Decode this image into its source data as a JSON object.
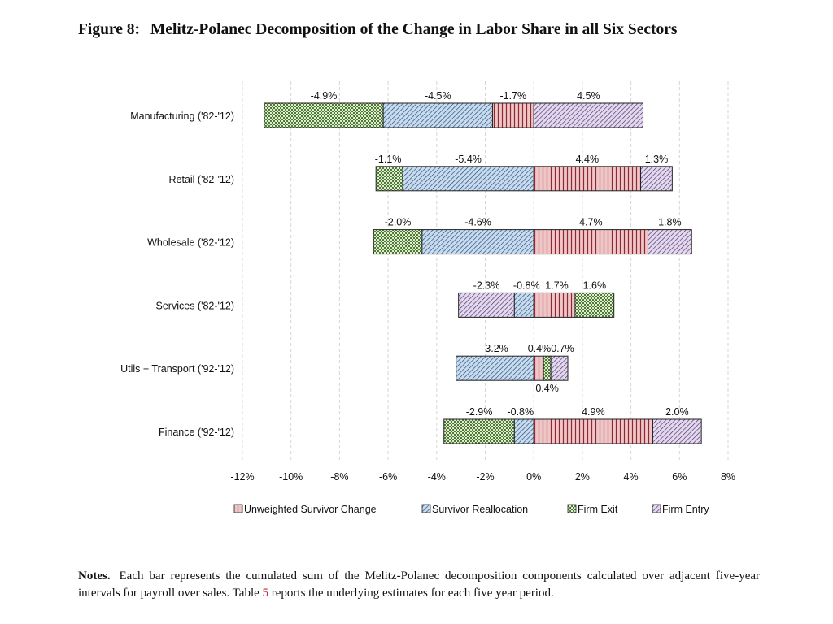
{
  "figure": {
    "label": "Figure 8:",
    "title": "Melitz-Polanec Decomposition of the Change in Labor Share in all Six Sectors"
  },
  "notes": {
    "lead": "Notes.",
    "text_before": "Each bar represents the cumulated sum of the Melitz-Polanec decomposition components calculated over adjacent five-year intervals for payroll over sales. Table",
    "ref": "5",
    "text_after": "reports the underlying estimates for each five year period."
  },
  "chart_data": {
    "type": "bar",
    "orientation": "horizontal",
    "stacked": true,
    "xlim": [
      -12,
      8
    ],
    "xticks": [
      -12,
      -10,
      -8,
      -6,
      -4,
      -2,
      0,
      2,
      4,
      6,
      8
    ],
    "xtick_labels": [
      "-12%",
      "-10%",
      "-8%",
      "-6%",
      "-4%",
      "-2%",
      "0%",
      "2%",
      "4%",
      "6%",
      "8%"
    ],
    "grid": "vertical dashed",
    "legend_position": "bottom",
    "categories": [
      "Manufacturing ('82-'12)",
      "Retail ('82-'12)",
      "Wholesale ('82-'12)",
      "Services ('82-'12)",
      "Utils + Transport ('92-'12)",
      "Finance ('92-'12)"
    ],
    "series": [
      {
        "name": "Unweighted Survivor Change",
        "color": "#e8b4b4",
        "pattern": "vertical-lines",
        "values": [
          -1.7,
          4.4,
          4.7,
          1.7,
          0.4,
          4.9
        ]
      },
      {
        "name": "Survivor Reallocation",
        "color": "#b8d0ea",
        "pattern": "diagonal-lines",
        "values": [
          -4.5,
          -5.4,
          -4.6,
          -0.8,
          -3.2,
          -0.8
        ]
      },
      {
        "name": "Firm Exit",
        "color": "#c4dcb0",
        "pattern": "checker",
        "values": [
          -4.9,
          -1.1,
          -2.0,
          1.6,
          0.4,
          -2.9
        ]
      },
      {
        "name": "Firm Entry",
        "color": "#d4c4e4",
        "pattern": "diagonal-lines",
        "values": [
          4.5,
          1.3,
          1.8,
          -2.3,
          0.7,
          2.0
        ]
      }
    ],
    "segments": [
      [
        {
          "series": 2,
          "from": -11.1,
          "to": -6.2
        },
        {
          "series": 1,
          "from": -6.2,
          "to": -1.7
        },
        {
          "series": 0,
          "from": -1.7,
          "to": 0
        },
        {
          "series": 3,
          "from": 0,
          "to": 4.5
        }
      ],
      [
        {
          "series": 2,
          "from": -6.5,
          "to": -5.4
        },
        {
          "series": 1,
          "from": -5.4,
          "to": 0
        },
        {
          "series": 0,
          "from": 0,
          "to": 4.4
        },
        {
          "series": 3,
          "from": 4.4,
          "to": 5.7
        }
      ],
      [
        {
          "series": 2,
          "from": -6.6,
          "to": -4.6
        },
        {
          "series": 1,
          "from": -4.6,
          "to": 0
        },
        {
          "series": 0,
          "from": 0,
          "to": 4.7
        },
        {
          "series": 3,
          "from": 4.7,
          "to": 6.5
        }
      ],
      [
        {
          "series": 3,
          "from": -3.1,
          "to": -0.8
        },
        {
          "series": 1,
          "from": -0.8,
          "to": 0
        },
        {
          "series": 0,
          "from": 0,
          "to": 1.7
        },
        {
          "series": 2,
          "from": 1.7,
          "to": 3.3
        }
      ],
      [
        {
          "series": 1,
          "from": -3.2,
          "to": 0
        },
        {
          "series": 0,
          "from": 0,
          "to": 0.4
        },
        {
          "series": 2,
          "from": 0.4,
          "to": 0.7
        },
        {
          "series": 3,
          "from": 0.7,
          "to": 1.4
        }
      ],
      [
        {
          "series": 2,
          "from": -3.7,
          "to": -0.8
        },
        {
          "series": 1,
          "from": -0.8,
          "to": 0
        },
        {
          "series": 0,
          "from": 0,
          "to": 4.9
        },
        {
          "series": 3,
          "from": 4.9,
          "to": 6.9
        }
      ]
    ],
    "data_labels": [
      [
        {
          "text": "-4.9%",
          "at": -8.65,
          "pos": "above"
        },
        {
          "text": "-4.5%",
          "at": -3.95,
          "pos": "above"
        },
        {
          "text": "-1.7%",
          "at": -0.85,
          "pos": "above"
        },
        {
          "text": "4.5%",
          "at": 2.25,
          "pos": "above"
        }
      ],
      [
        {
          "text": "-1.1%",
          "at": -6.0,
          "pos": "above"
        },
        {
          "text": "-5.4%",
          "at": -2.7,
          "pos": "above"
        },
        {
          "text": "4.4%",
          "at": 2.2,
          "pos": "above"
        },
        {
          "text": "1.3%",
          "at": 5.05,
          "pos": "above"
        }
      ],
      [
        {
          "text": "-2.0%",
          "at": -5.6,
          "pos": "above"
        },
        {
          "text": "-4.6%",
          "at": -2.3,
          "pos": "above"
        },
        {
          "text": "4.7%",
          "at": 2.35,
          "pos": "above"
        },
        {
          "text": "1.8%",
          "at": 5.6,
          "pos": "above"
        }
      ],
      [
        {
          "text": "-2.3%",
          "at": -1.95,
          "pos": "above"
        },
        {
          "text": "-0.8%",
          "at": -0.3,
          "pos": "above"
        },
        {
          "text": "1.7%",
          "at": 0.95,
          "pos": "above"
        },
        {
          "text": "1.6%",
          "at": 2.5,
          "pos": "above"
        }
      ],
      [
        {
          "text": "-3.2%",
          "at": -1.6,
          "pos": "above"
        },
        {
          "text": "0.4%0.7%",
          "at": -0.25,
          "pos": "above",
          "anchor": "start"
        },
        {
          "text": "0.4%",
          "at": 0.55,
          "pos": "below"
        }
      ],
      [
        {
          "text": "-2.9%",
          "at": -2.25,
          "pos": "above"
        },
        {
          "text": "-0.8%",
          "at": -0.55,
          "pos": "above"
        },
        {
          "text": "4.9%",
          "at": 2.45,
          "pos": "above"
        },
        {
          "text": "2.0%",
          "at": 5.9,
          "pos": "above"
        }
      ]
    ]
  }
}
